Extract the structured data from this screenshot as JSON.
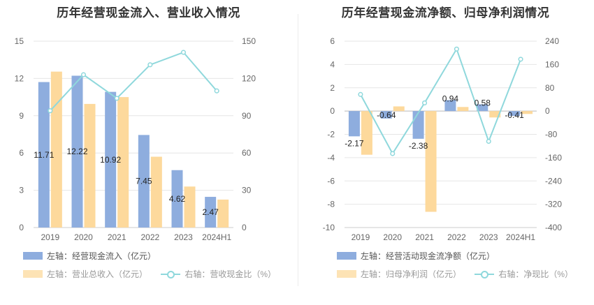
{
  "charts": {
    "left": {
      "title": "历年经营现金流入、营业收入情况",
      "legend": {
        "s1": "左轴：经营现金流入（亿元）",
        "s2": "左轴：营业总收入（亿元）",
        "s3": "右轴：营收现金比（%）"
      }
    },
    "right": {
      "title": "历年经营现金流净额、归母净利润情况",
      "legend": {
        "s1": "左轴：经营活动现金流净额（亿元）",
        "s2": "左轴：归母净利润（亿元）",
        "s3": "右轴：净现比（%）"
      }
    }
  },
  "colors": {
    "blue": "#8eadde",
    "orange": "#fdd99c",
    "line": "#8fd8dc"
  },
  "chart_data": [
    {
      "type": "bar",
      "categories": [
        "2019",
        "2020",
        "2021",
        "2022",
        "2023",
        "2024H1"
      ],
      "title": "历年经营现金流入、营业收入情况",
      "ylim_left": [
        0,
        15
      ],
      "yticks_left": [
        0,
        3,
        6,
        9,
        12,
        15
      ],
      "ylim_right": [
        0,
        150
      ],
      "yticks_right": [
        0,
        30,
        60,
        90,
        120,
        150
      ],
      "grid": true,
      "legend_position": "bottom",
      "series": [
        {
          "name": "左轴：经营现金流入（亿元）",
          "axis": "left",
          "type": "bar",
          "color": "#8eadde",
          "values": [
            11.71,
            12.22,
            10.92,
            7.45,
            4.62,
            2.47
          ],
          "labels": [
            "11.71",
            "12.22",
            "10.92",
            "7.45",
            "4.62",
            "2.47"
          ]
        },
        {
          "name": "左轴：营业总收入（亿元）",
          "axis": "left",
          "type": "bar",
          "color": "#fdd99c",
          "values": [
            12.55,
            9.95,
            10.5,
            5.7,
            3.3,
            2.25
          ]
        },
        {
          "name": "右轴：营收现金比（%）",
          "axis": "right",
          "type": "line",
          "color": "#8fd8dc",
          "values": [
            94,
            123,
            104,
            131,
            141,
            110
          ]
        }
      ]
    },
    {
      "type": "bar",
      "categories": [
        "2019",
        "2020",
        "2021",
        "2022",
        "2023",
        "2024H1"
      ],
      "title": "历年经营现金流净额、归母净利润情况",
      "ylim_left": [
        -10,
        6
      ],
      "yticks_left": [
        -10,
        -8,
        -6,
        -4,
        -2,
        0,
        2,
        4,
        6
      ],
      "ylim_right": [
        -400,
        240
      ],
      "yticks_right": [
        -400,
        -320,
        -240,
        -160,
        -80,
        0,
        80,
        160,
        240
      ],
      "grid": true,
      "legend_position": "bottom",
      "series": [
        {
          "name": "左轴：经营活动现金流净额（亿元）",
          "axis": "left",
          "type": "bar",
          "color": "#8eadde",
          "values": [
            -2.17,
            -0.64,
            -2.38,
            0.94,
            0.58,
            -0.41
          ],
          "labels": [
            "-2.17",
            "-0.64",
            "-2.38",
            "0.94",
            "0.58",
            "-0.41"
          ]
        },
        {
          "name": "左轴：归母净利润（亿元）",
          "axis": "left",
          "type": "bar",
          "color": "#fdd99c",
          "values": [
            -3.75,
            0.4,
            -8.65,
            0.35,
            -0.55,
            -0.25
          ]
        },
        {
          "name": "右轴：净现比（%）",
          "axis": "right",
          "type": "line",
          "color": "#8fd8dc",
          "values": [
            57,
            -146,
            28,
            213,
            -104,
            178
          ]
        }
      ]
    }
  ]
}
